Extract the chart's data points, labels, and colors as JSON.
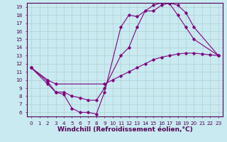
{
  "xlabel": "Windchill (Refroidissement éolien,°C)",
  "bg_color": "#c8eaf0",
  "line_color": "#800080",
  "xlim": [
    -0.5,
    23.5
  ],
  "ylim": [
    5.5,
    19.5
  ],
  "xticks": [
    0,
    1,
    2,
    3,
    4,
    5,
    6,
    7,
    8,
    9,
    10,
    11,
    12,
    13,
    14,
    15,
    16,
    17,
    18,
    19,
    20,
    21,
    22,
    23
  ],
  "yticks": [
    6,
    7,
    8,
    9,
    10,
    11,
    12,
    13,
    14,
    15,
    16,
    17,
    18,
    19
  ],
  "series": [
    {
      "x": [
        0,
        2,
        3,
        4,
        5,
        6,
        7,
        8,
        9,
        11,
        12,
        13,
        15,
        16,
        17,
        18,
        19,
        20,
        23
      ],
      "y": [
        11.5,
        9.5,
        8.5,
        8.2,
        6.5,
        6.0,
        6.0,
        5.8,
        8.5,
        16.5,
        18.0,
        17.8,
        19.2,
        19.5,
        19.4,
        18.0,
        16.5,
        15.0,
        13.0
      ]
    },
    {
      "x": [
        0,
        2,
        3,
        4,
        5,
        6,
        7,
        8,
        9,
        11,
        12,
        13,
        14,
        15,
        16,
        17,
        18,
        19,
        20,
        23
      ],
      "y": [
        11.5,
        9.8,
        8.5,
        8.5,
        8.0,
        7.8,
        7.5,
        7.5,
        9.0,
        13.0,
        14.0,
        16.5,
        18.5,
        18.5,
        19.2,
        19.5,
        19.2,
        18.3,
        16.5,
        13.0
      ]
    },
    {
      "x": [
        0,
        2,
        3,
        9,
        10,
        11,
        12,
        13,
        14,
        15,
        16,
        17,
        18,
        19,
        20,
        21,
        22,
        23
      ],
      "y": [
        11.5,
        10.0,
        9.5,
        9.5,
        10.0,
        10.5,
        11.0,
        11.5,
        12.0,
        12.5,
        12.8,
        13.0,
        13.2,
        13.3,
        13.3,
        13.2,
        13.1,
        13.0
      ]
    }
  ],
  "grid_color": "#aacccc",
  "tick_fontsize": 5.2,
  "xlabel_fontsize": 6.5,
  "marker": "D",
  "markersize": 1.8,
  "linewidth": 0.8
}
